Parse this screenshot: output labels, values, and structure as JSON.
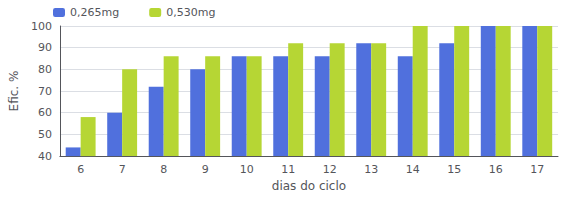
{
  "chart_data": {
    "type": "bar",
    "categories": [
      6,
      7,
      8,
      9,
      10,
      11,
      12,
      13,
      14,
      15,
      16,
      17
    ],
    "series": [
      {
        "name": "0,265mg",
        "values": [
          44,
          60,
          72,
          80,
          86,
          86,
          86,
          92,
          86,
          92,
          100,
          100
        ]
      },
      {
        "name": "0,530mg",
        "values": [
          58,
          80,
          86,
          86,
          86,
          92,
          92,
          92,
          100,
          100,
          100,
          100
        ]
      }
    ],
    "xlabel": "dias do ciclo",
    "ylabel": "Efic. %",
    "ylim": [
      40,
      100
    ],
    "yticks": [
      40,
      50,
      60,
      70,
      80,
      90,
      100
    ],
    "grid": true,
    "legend": "upper left"
  }
}
